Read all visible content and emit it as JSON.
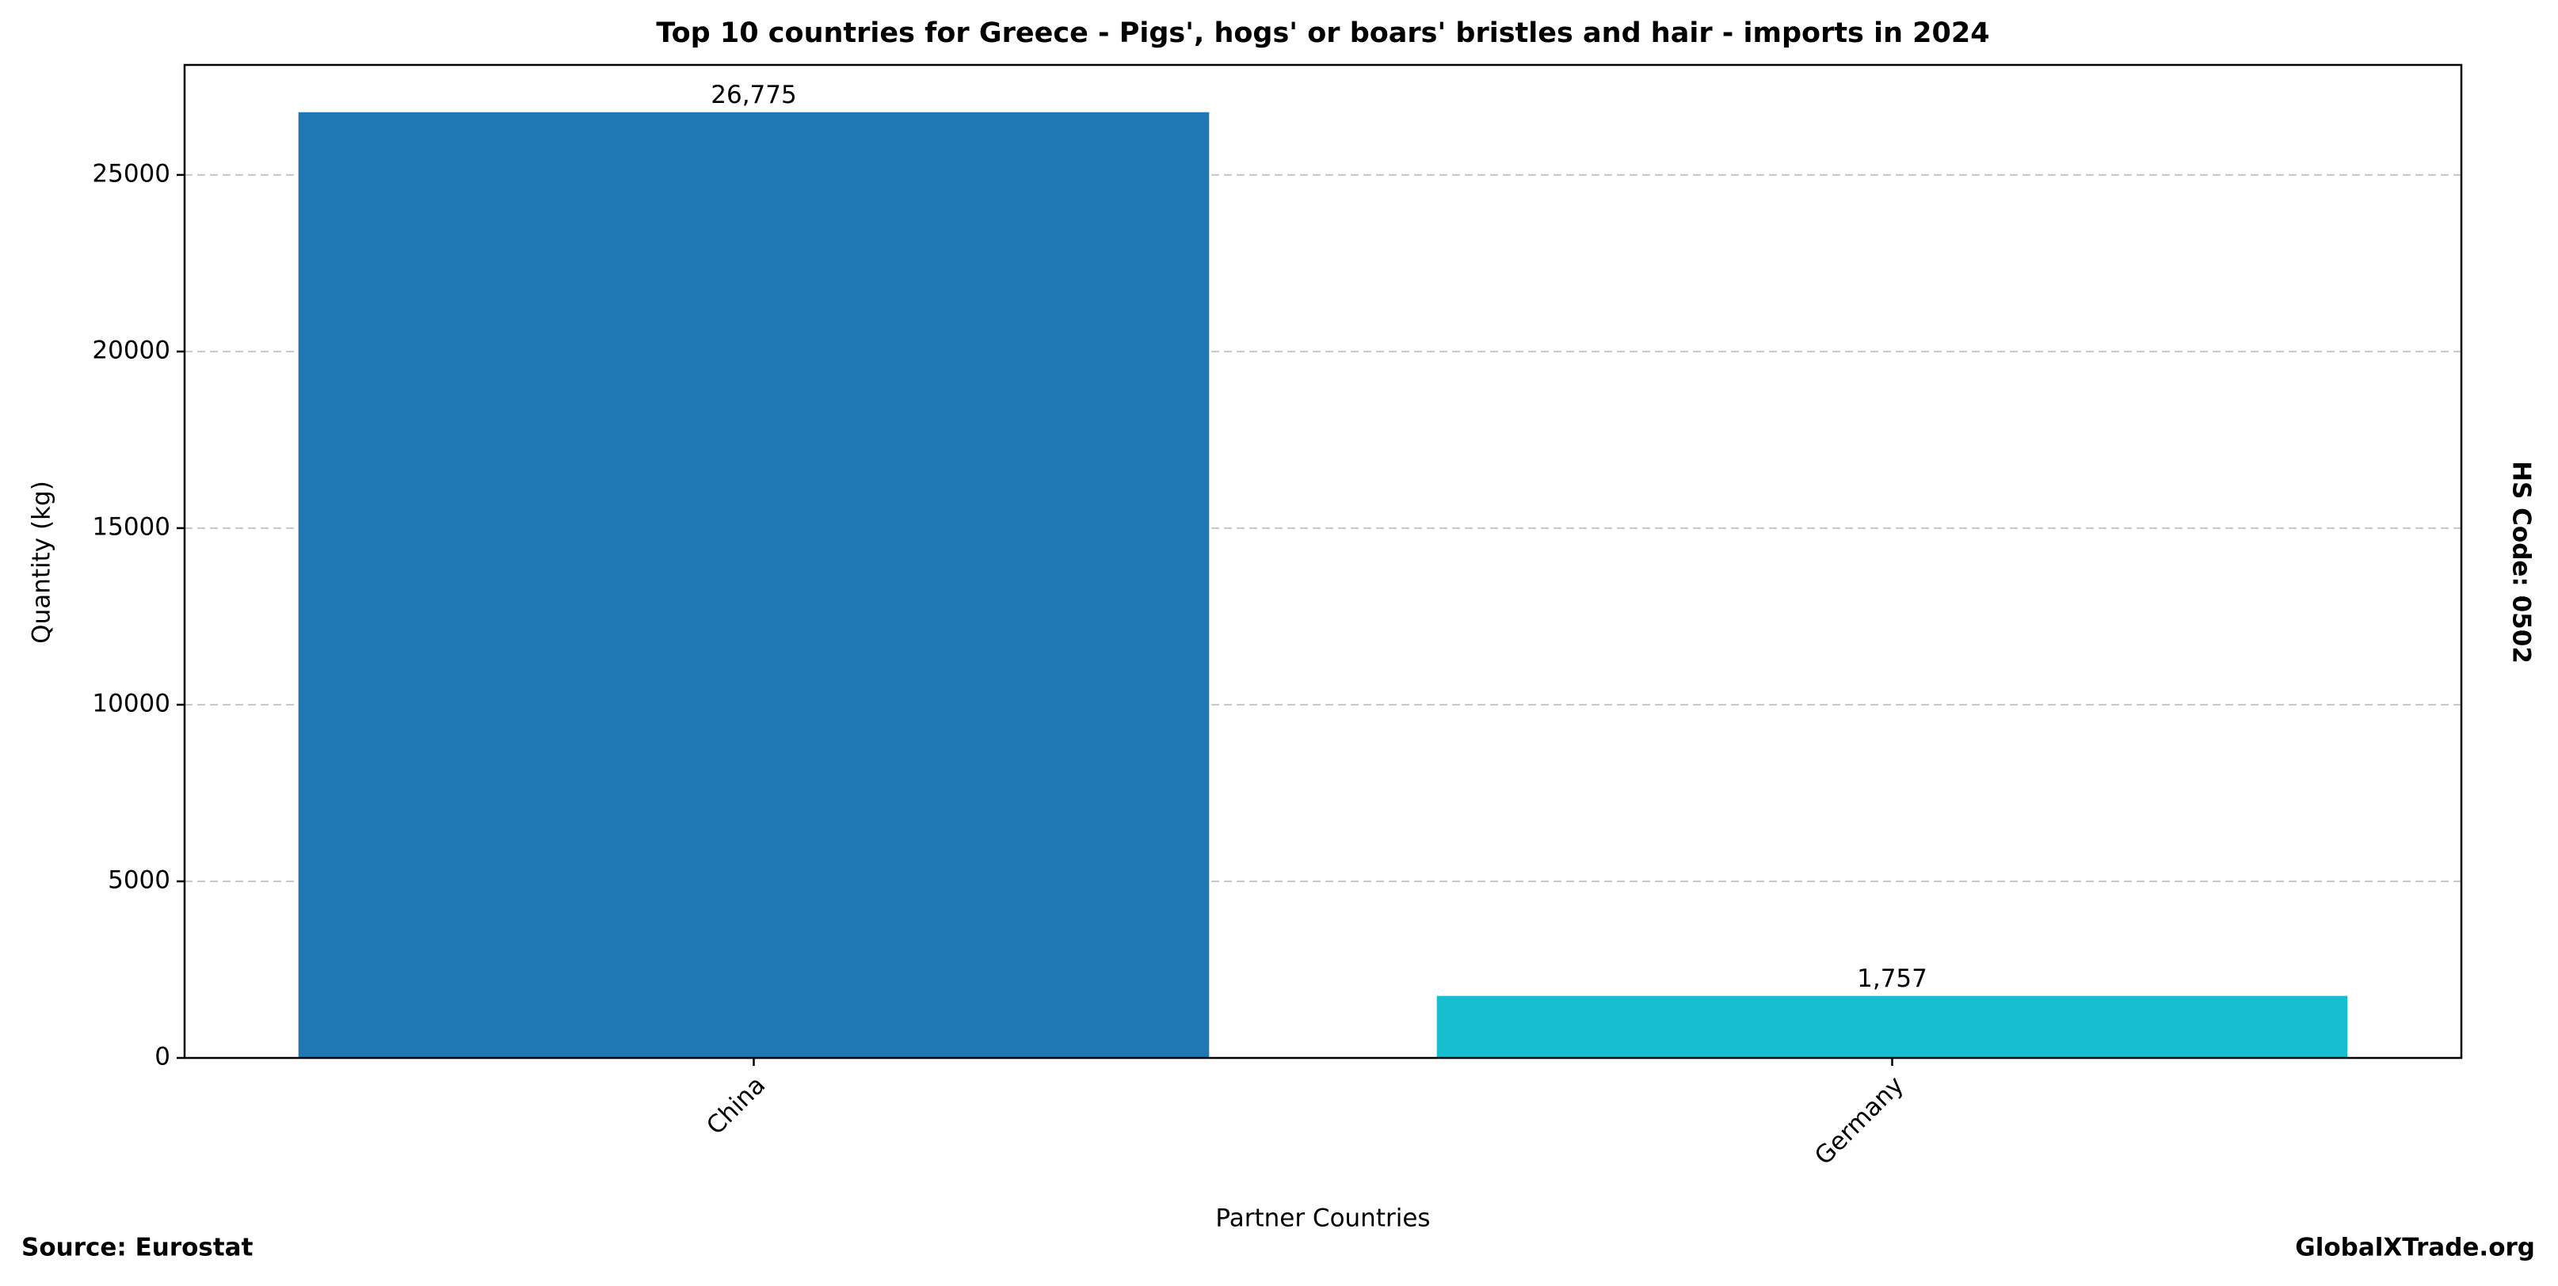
{
  "chart_data": {
    "type": "bar",
    "title": "Top 10 countries for Greece - Pigs', hogs' or boars' bristles and hair - imports in 2024",
    "x_label": "Partner Countries",
    "y_label": "Quantity (kg)",
    "right_label": "HS Code: 0502",
    "source": "Source: Eurostat",
    "brand": "GlobalXTrade.org",
    "categories": [
      "China",
      "Germany"
    ],
    "values": [
      26775,
      1757
    ],
    "value_labels": [
      "26,775",
      "1,757"
    ],
    "colors": [
      "#1f77b4",
      "#17becf"
    ],
    "ylim": [
      0,
      28114
    ],
    "yticks": [
      0,
      5000,
      10000,
      15000,
      20000,
      25000
    ],
    "grid": true
  }
}
